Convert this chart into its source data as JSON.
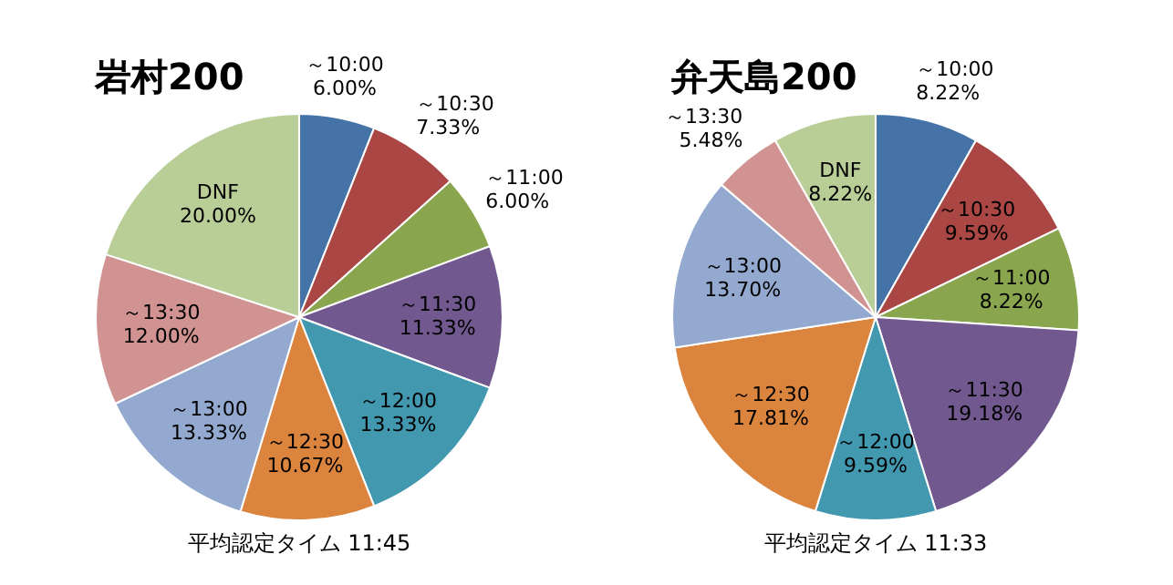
{
  "chart_data": [
    {
      "type": "pie",
      "title": "岩村200",
      "categories": [
        "～10:00",
        "～10:30",
        "～11:00",
        "～11:30",
        "～12:00",
        "～12:30",
        "～13:00",
        "～13:30",
        "DNF"
      ],
      "values": [
        6.0,
        7.33,
        6.0,
        11.33,
        13.33,
        10.67,
        13.33,
        12.0,
        20.0
      ],
      "value_labels": [
        "6.00%",
        "7.33%",
        "6.00%",
        "11.33%",
        "13.33%",
        "10.67%",
        "13.33%",
        "12.00%",
        "20.00%"
      ],
      "colors": [
        "#4572a7",
        "#aa4643",
        "#89a54e",
        "#71588f",
        "#4198af",
        "#db843d",
        "#93a9cf",
        "#d19392",
        "#b9cd96"
      ],
      "legend": false,
      "annotations": [
        "平均認定タイム 11:45"
      ]
    },
    {
      "type": "pie",
      "title": "弁天島200",
      "categories": [
        "～10:00",
        "～10:30",
        "～11:00",
        "～11:30",
        "～12:00",
        "～12:30",
        "～13:00",
        "～13:30",
        "DNF"
      ],
      "values": [
        8.22,
        9.59,
        8.22,
        19.18,
        9.59,
        17.81,
        13.7,
        5.48,
        8.22
      ],
      "value_labels": [
        "8.22%",
        "9.59%",
        "8.22%",
        "19.18%",
        "9.59%",
        "17.81%",
        "13.70%",
        "5.48%",
        "8.22%"
      ],
      "colors": [
        "#4572a7",
        "#aa4643",
        "#89a54e",
        "#71588f",
        "#4198af",
        "#db843d",
        "#93a9cf",
        "#d19392",
        "#b9cd96"
      ],
      "legend": false,
      "annotations": [
        "平均認定タイム 11:33"
      ]
    }
  ]
}
